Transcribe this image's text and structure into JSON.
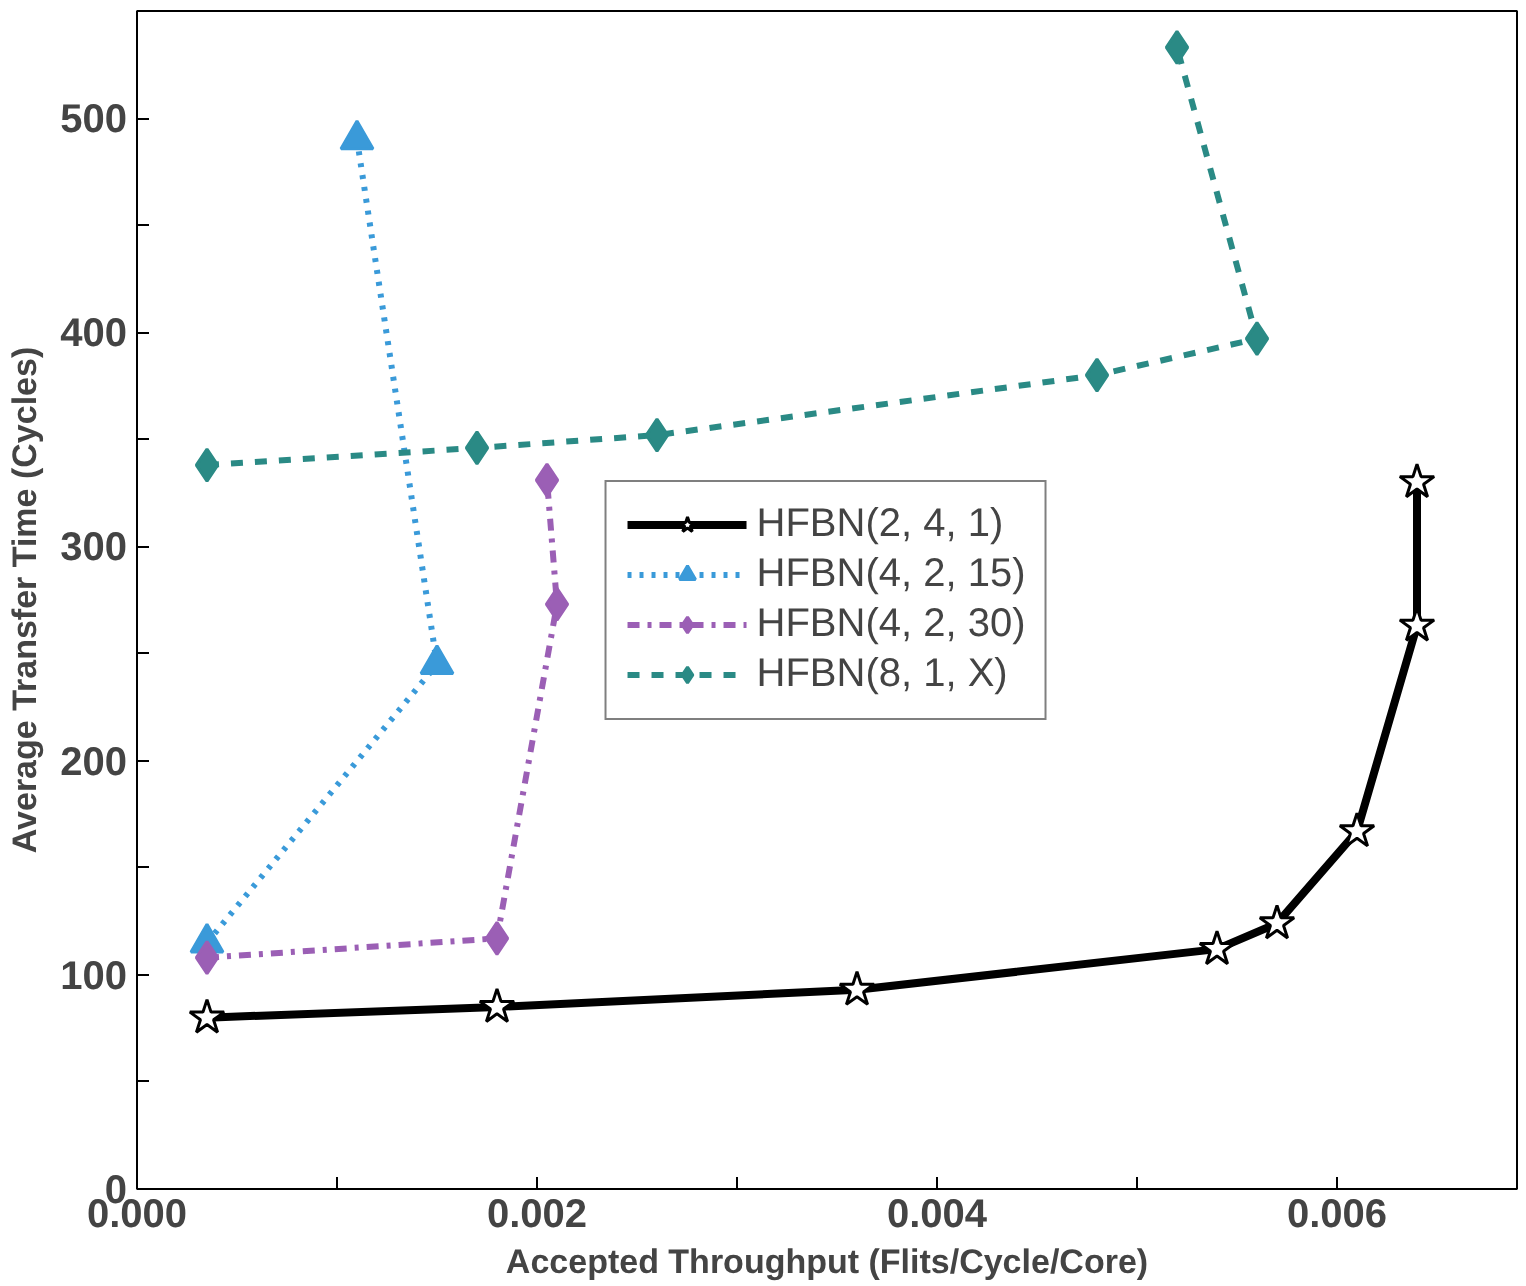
{
  "chart_data": {
    "type": "line",
    "xlabel": "Accepted Throughput (Flits/Cycle/Core)",
    "ylabel": "Average Transfer Time (Cycles)",
    "xlim": [
      0,
      0.0069
    ],
    "ylim": [
      0,
      550
    ],
    "xticks": [
      {
        "value": 0,
        "label": "0.000"
      },
      {
        "value": 0.001,
        "label": null
      },
      {
        "value": 0.002,
        "label": "0.002"
      },
      {
        "value": 0.003,
        "label": null
      },
      {
        "value": 0.004,
        "label": "0.004"
      },
      {
        "value": 0.005,
        "label": null
      },
      {
        "value": 0.006,
        "label": "0.006"
      }
    ],
    "yticks": [
      0,
      {
        "value": 50,
        "label": null
      },
      100,
      {
        "value": 150,
        "label": null
      },
      200,
      {
        "value": 250,
        "label": null
      },
      300,
      {
        "value": 350,
        "label": null
      },
      400,
      {
        "value": 450,
        "label": null
      },
      500
    ],
    "grid": false,
    "legend": "center",
    "series": [
      {
        "name": "HFBN(2, 4, 1)",
        "color": "#000000",
        "marker": "star",
        "line_style": "solid",
        "x": [
          0.00035,
          0.0018,
          0.0036,
          0.0054,
          0.0057,
          0.0061,
          0.0064,
          0.0064
        ],
        "values": [
          80,
          85,
          93,
          112,
          124,
          167,
          263,
          330
        ]
      },
      {
        "name": "HFBN(4, 2, 15)",
        "color": "#3a9ad9",
        "marker": "triangle",
        "line_style": "dotted",
        "x": [
          0.00035,
          0.0015,
          0.0011
        ],
        "values": [
          115,
          245,
          490
        ]
      },
      {
        "name": "HFBN(4, 2, 30)",
        "color": "#9b5fb5",
        "marker": "diamond",
        "line_style": "dashdot",
        "x": [
          0.00035,
          0.0018,
          0.0021,
          0.00205
        ],
        "values": [
          108,
          117,
          273,
          331
        ]
      },
      {
        "name": "HFBN(8, 1, X)",
        "color": "#2a8a85",
        "marker": "diamond",
        "line_style": "dashed",
        "x": [
          0.00035,
          0.0017,
          0.0026,
          0.0048,
          0.0056,
          0.0052
        ],
        "values": [
          338,
          346,
          352,
          380,
          397,
          533
        ]
      }
    ]
  }
}
